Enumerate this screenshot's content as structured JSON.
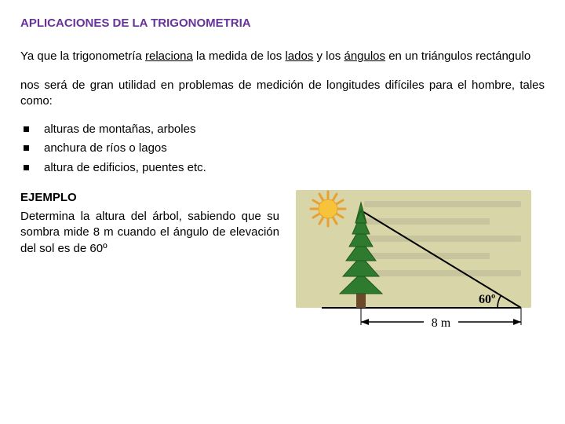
{
  "title": "APLICACIONES DE LA TRIGONOMETRIA",
  "intro": {
    "p1_a": "Ya que la trigonometría ",
    "p1_u1": "relaciona",
    "p1_b": " la medida de los ",
    "p1_u2": "lados",
    "p1_c": " y los ",
    "p1_u3": "ángulos",
    "p1_d": " en un triángulos rectángulo",
    "p2": "nos será de gran utilidad en problemas de medición de longitudes difíciles para el hombre, tales como:"
  },
  "bullets": [
    "alturas de montañas, arboles",
    "anchura de ríos o lagos",
    "altura de edificios, puentes etc."
  ],
  "example": {
    "heading": "EJEMPLO",
    "text": "Determina la altura del árbol, sabiendo que su sombra mide 8 m cuando el ángulo de elevación del sol es de 60º"
  },
  "figure": {
    "angle_label": "60º",
    "base_label": "8 m",
    "colors": {
      "paper_bg": "#d8d6a8",
      "tree": "#2e7a2e",
      "tree_dark": "#1f5a1f",
      "trunk": "#6b4a2a",
      "sun_core": "#f6c33a",
      "sun_outer": "#e8a02e",
      "line": "#000000",
      "text": "#000000",
      "ghost": "#b9b796"
    }
  }
}
